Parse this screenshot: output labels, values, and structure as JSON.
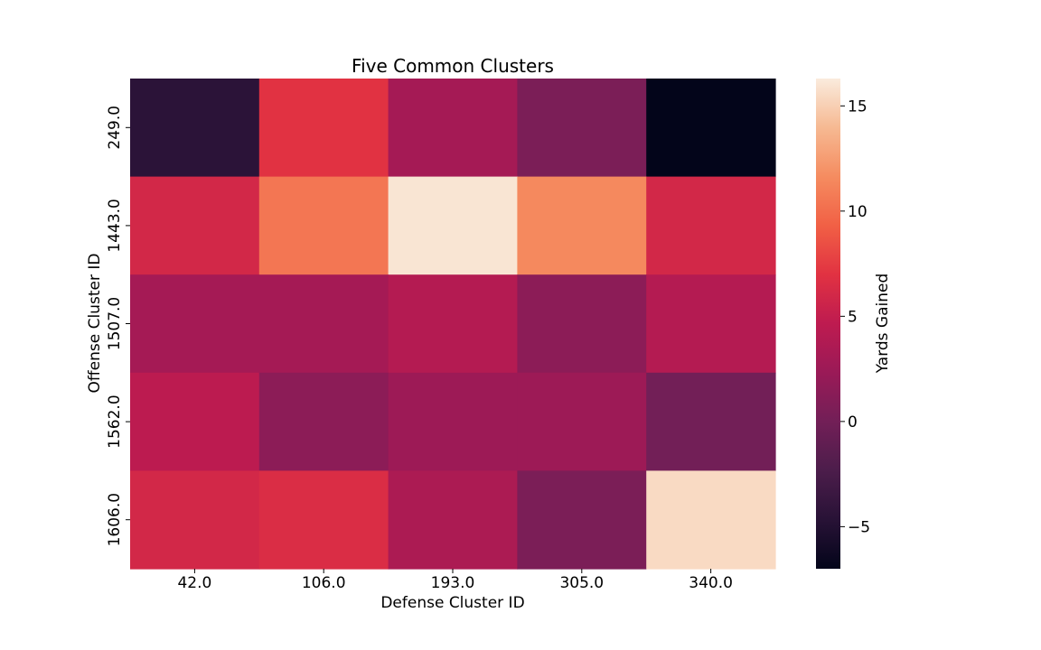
{
  "chart_data": {
    "type": "heatmap",
    "title": "Five Common Clusters",
    "xlabel": "Defense Cluster ID",
    "ylabel": "Offense Cluster ID",
    "x_categories": [
      "42.0",
      "106.0",
      "193.0",
      "305.0",
      "340.0"
    ],
    "y_categories": [
      "249.0",
      "1443.0",
      "1507.0",
      "1562.0",
      "1606.0"
    ],
    "values": [
      [
        -4.5,
        7.0,
        3.0,
        0.5,
        -7.0
      ],
      [
        6.0,
        10.5,
        16.0,
        11.5,
        6.0
      ],
      [
        3.0,
        3.0,
        4.0,
        1.5,
        4.0
      ],
      [
        4.5,
        1.5,
        2.5,
        2.5,
        0.0
      ],
      [
        6.0,
        6.5,
        3.5,
        0.5,
        15.5
      ]
    ],
    "colorbar": {
      "label": "Yards Gained",
      "min": -7.0,
      "max": 16.3,
      "ticks": [
        -5,
        0,
        5,
        10,
        15
      ],
      "colormap": "rocket"
    }
  }
}
